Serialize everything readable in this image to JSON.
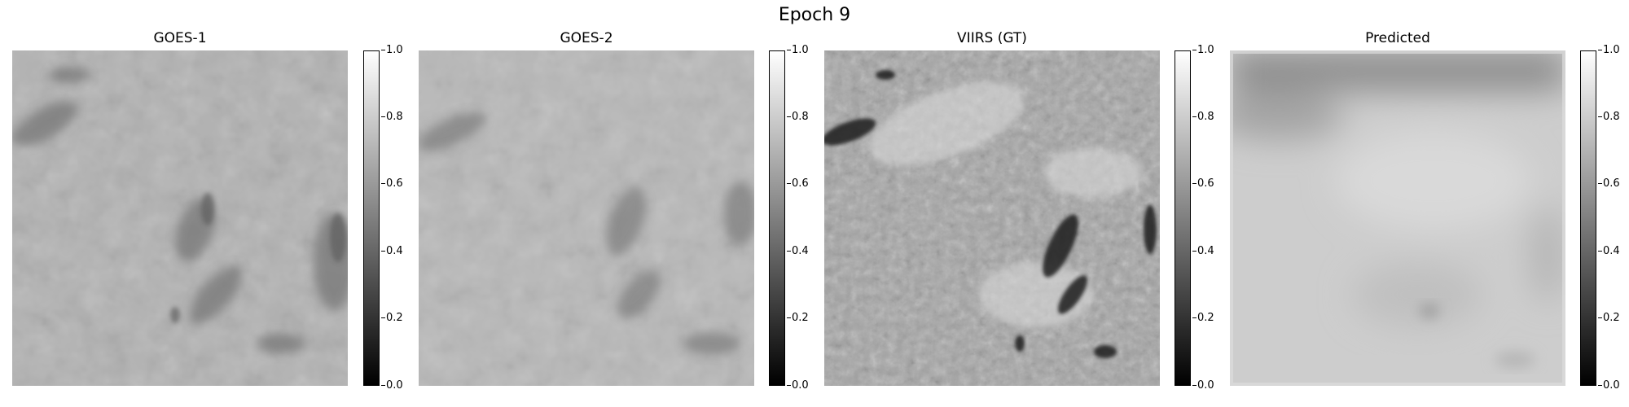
{
  "figure": {
    "title": "Epoch 9"
  },
  "panels": [
    {
      "title": "GOES-1",
      "icon": "satellite-image"
    },
    {
      "title": "GOES-2",
      "icon": "satellite-image"
    },
    {
      "title": "VIIRS (GT)",
      "icon": "satellite-image"
    },
    {
      "title": "Predicted",
      "icon": "satellite-image"
    }
  ],
  "colorbar": {
    "colormap": "gray",
    "range": [
      0.0,
      1.0
    ],
    "ticks": [
      "0.0",
      "0.2",
      "0.4",
      "0.6",
      "0.8",
      "1.0"
    ]
  }
}
